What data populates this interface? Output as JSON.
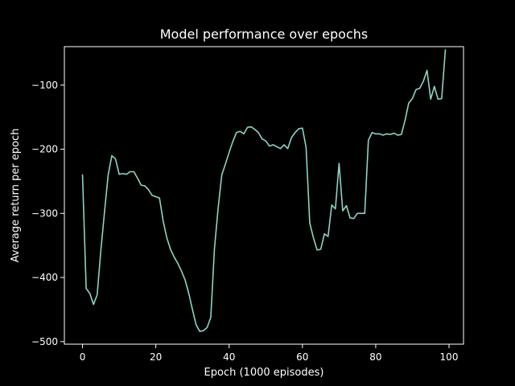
{
  "chart_data": {
    "type": "line",
    "title": "Model performance over epochs",
    "xlabel": "Epoch (1000 episodes)",
    "ylabel": "Average return per epoch",
    "xlim": [
      -4.95,
      103.95
    ],
    "ylim": [
      -504,
      -40
    ],
    "xticks": [
      0,
      20,
      40,
      60,
      80,
      100
    ],
    "yticks": [
      -500,
      -400,
      -300,
      -200,
      -100
    ],
    "grid": false,
    "line_color": "#8dd3c7",
    "background": "#000000",
    "foreground": "#ffffff",
    "series": [
      {
        "x": [
          0,
          1,
          2,
          3,
          4,
          5,
          6,
          7,
          8,
          9,
          10,
          11,
          12,
          13,
          14,
          15,
          16,
          17,
          18,
          19,
          20,
          21,
          22,
          23,
          24,
          25,
          26,
          27,
          28,
          29,
          30,
          31,
          32,
          33,
          34,
          35,
          36,
          37,
          38,
          39,
          40,
          41,
          42,
          43,
          44,
          45,
          46,
          47,
          48,
          49,
          50,
          51,
          52,
          53,
          54,
          55,
          56,
          57,
          58,
          59,
          60,
          61,
          62,
          63,
          64,
          65,
          66,
          67,
          68,
          69,
          70,
          71,
          72,
          73,
          74,
          75,
          76,
          77,
          78,
          79,
          80,
          81,
          82,
          83,
          84,
          85,
          86,
          87,
          88,
          89,
          90,
          91,
          92,
          93,
          94,
          95,
          96,
          97,
          98,
          99
        ],
        "values": [
          -240,
          -417,
          -425,
          -442,
          -427,
          -358,
          -298,
          -240,
          -210,
          -215,
          -239,
          -238,
          -239,
          -235,
          -235,
          -245,
          -256,
          -257,
          -263,
          -272,
          -274,
          -276,
          -312,
          -338,
          -356,
          -368,
          -378,
          -390,
          -404,
          -425,
          -450,
          -474,
          -484,
          -483,
          -478,
          -462,
          -355,
          -292,
          -240,
          -223,
          -205,
          -188,
          -174,
          -172,
          -176,
          -166,
          -165,
          -169,
          -174,
          -184,
          -187,
          -195,
          -193,
          -196,
          -199,
          -193,
          -199,
          -182,
          -174,
          -168,
          -167,
          -197,
          -315,
          -338,
          -357,
          -356,
          -332,
          -336,
          -287,
          -293,
          -222,
          -296,
          -288,
          -307,
          -308,
          -300,
          -300,
          -300,
          -186,
          -174,
          -176,
          -176,
          -178,
          -176,
          -177,
          -175,
          -178,
          -177,
          -155,
          -128,
          -121,
          -107,
          -105,
          -94,
          -77,
          -122,
          -102,
          -122,
          -121,
          -45
        ]
      }
    ]
  }
}
